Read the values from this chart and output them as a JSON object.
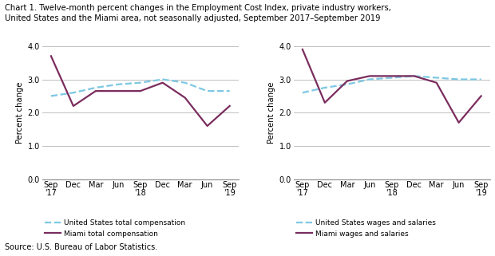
{
  "title_line1": "Chart 1. Twelve-month percent changes in the Employment Cost Index, private industry workers,",
  "title_line2": "United States and the Miami area, not seasonally adjusted, September 2017–September 2019",
  "source": "Source: U.S. Bureau of Labor Statistics.",
  "x_labels": [
    "Sep\n'17",
    "Dec",
    "Mar",
    "Jun",
    "Sep\n'18",
    "Dec",
    "Mar",
    "Jun",
    "Sep\n'19"
  ],
  "ylim": [
    0.0,
    4.0
  ],
  "yticks": [
    0.0,
    1.0,
    2.0,
    3.0,
    4.0
  ],
  "ylabel": "Percent change",
  "chart1": {
    "us_total": [
      2.5,
      2.6,
      2.75,
      2.85,
      2.9,
      3.0,
      2.9,
      2.65,
      2.65
    ],
    "miami_total": [
      3.7,
      2.2,
      2.65,
      2.65,
      2.65,
      2.9,
      2.45,
      1.6,
      2.2
    ],
    "us_label": "United States total compensation",
    "miami_label": "Miami total compensation"
  },
  "chart2": {
    "us_wages": [
      2.6,
      2.75,
      2.85,
      3.0,
      3.05,
      3.1,
      3.05,
      3.0,
      3.0
    ],
    "miami_wages": [
      3.9,
      2.3,
      2.95,
      3.1,
      3.1,
      3.1,
      2.9,
      1.7,
      2.5
    ],
    "us_label": "United States wages and salaries",
    "miami_label": "Miami wages and salaries"
  },
  "us_color": "#7EC8E3",
  "miami_color": "#7B2D5E",
  "linewidth": 1.6,
  "grid_color": "#c0c0c0",
  "spine_color": "#888888"
}
